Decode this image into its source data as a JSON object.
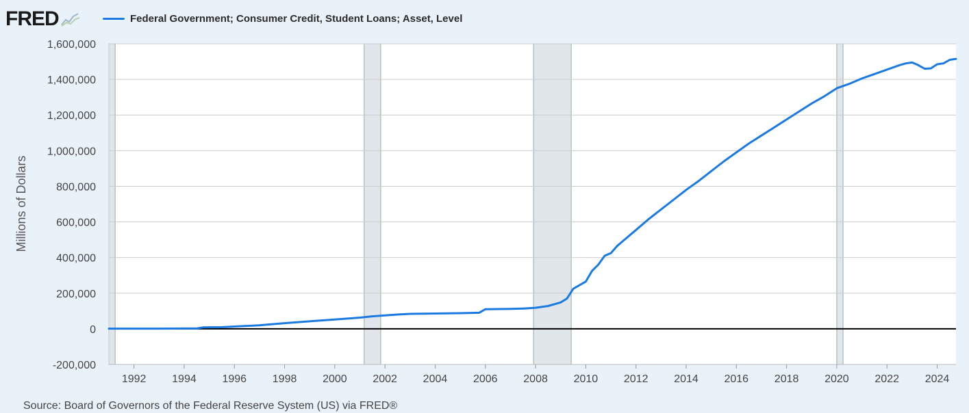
{
  "header": {
    "logo_text": "FRED",
    "legend_label": "Federal Government; Consumer Credit, Student Loans; Asset, Level"
  },
  "colors": {
    "series": "#1a7ae2",
    "background": "#e9f1f9",
    "plot_bg": "#ffffff",
    "recession": "#e1e6ea",
    "grid": "#cccccc",
    "zero_line": "#000000"
  },
  "source": "Source: Board of Governors of the Federal Reserve System (US) via FRED®",
  "chart_data": {
    "type": "line",
    "title": "",
    "xlabel": "",
    "ylabel": "Millions of Dollars",
    "xlim": [
      1991.0,
      2024.75
    ],
    "ylim": [
      -200000,
      1600000
    ],
    "grid": true,
    "legend": "top-left",
    "y_ticks": [
      -200000,
      0,
      200000,
      400000,
      600000,
      800000,
      1000000,
      1200000,
      1400000,
      1600000
    ],
    "y_tick_labels": [
      "-200,000",
      "0",
      "200,000",
      "400,000",
      "600,000",
      "800,000",
      "1,000,000",
      "1,200,000",
      "1,400,000",
      "1,600,000"
    ],
    "x_ticks": [
      1992,
      1994,
      1996,
      1998,
      2000,
      2002,
      2004,
      2006,
      2008,
      2010,
      2012,
      2014,
      2016,
      2018,
      2020,
      2022,
      2024
    ],
    "x_tick_labels": [
      "1992",
      "1994",
      "1996",
      "1998",
      "2000",
      "2002",
      "2004",
      "2006",
      "2008",
      "2010",
      "2012",
      "2014",
      "2016",
      "2018",
      "2020",
      "2022",
      "2024"
    ],
    "recessions": [
      [
        1991.0,
        1991.25
      ],
      [
        2001.17,
        2001.83
      ],
      [
        2007.92,
        2009.42
      ],
      [
        2020.0,
        2020.25
      ]
    ],
    "series": [
      {
        "name": "Federal Government; Consumer Credit, Student Loans; Asset, Level",
        "x": [
          1991.0,
          1992.0,
          1993.0,
          1994.0,
          1994.5,
          1994.75,
          1995.5,
          1996.0,
          1997.0,
          1998.0,
          1999.0,
          2000.0,
          2001.0,
          2001.5,
          2002.0,
          2002.5,
          2003.0,
          2004.0,
          2005.0,
          2005.75,
          2006.0,
          2007.0,
          2007.5,
          2008.0,
          2008.5,
          2009.0,
          2009.25,
          2009.5,
          2009.75,
          2010.0,
          2010.25,
          2010.5,
          2010.75,
          2011.0,
          2011.25,
          2011.5,
          2012.0,
          2012.5,
          2013.0,
          2013.5,
          2014.0,
          2014.5,
          2015.0,
          2015.5,
          2016.0,
          2016.5,
          2017.0,
          2017.5,
          2018.0,
          2018.5,
          2019.0,
          2019.5,
          2020.0,
          2020.5,
          2021.0,
          2021.5,
          2022.0,
          2022.5,
          2022.75,
          2023.0,
          2023.25,
          2023.5,
          2023.75,
          2024.0,
          2024.25,
          2024.5,
          2024.75
        ],
        "values": [
          1000,
          1000,
          1000,
          2000,
          2000,
          8000,
          9000,
          13000,
          20000,
          32000,
          42000,
          52000,
          63000,
          70000,
          75000,
          80000,
          84000,
          86000,
          88000,
          90000,
          110000,
          112000,
          114000,
          118000,
          128000,
          148000,
          170000,
          225000,
          245000,
          265000,
          325000,
          360000,
          410000,
          425000,
          465000,
          495000,
          555000,
          615000,
          670000,
          725000,
          780000,
          830000,
          885000,
          940000,
          990000,
          1040000,
          1085000,
          1130000,
          1175000,
          1220000,
          1265000,
          1305000,
          1350000,
          1375000,
          1405000,
          1430000,
          1455000,
          1480000,
          1490000,
          1495000,
          1480000,
          1460000,
          1462000,
          1485000,
          1490000,
          1510000,
          1515000
        ]
      }
    ]
  }
}
